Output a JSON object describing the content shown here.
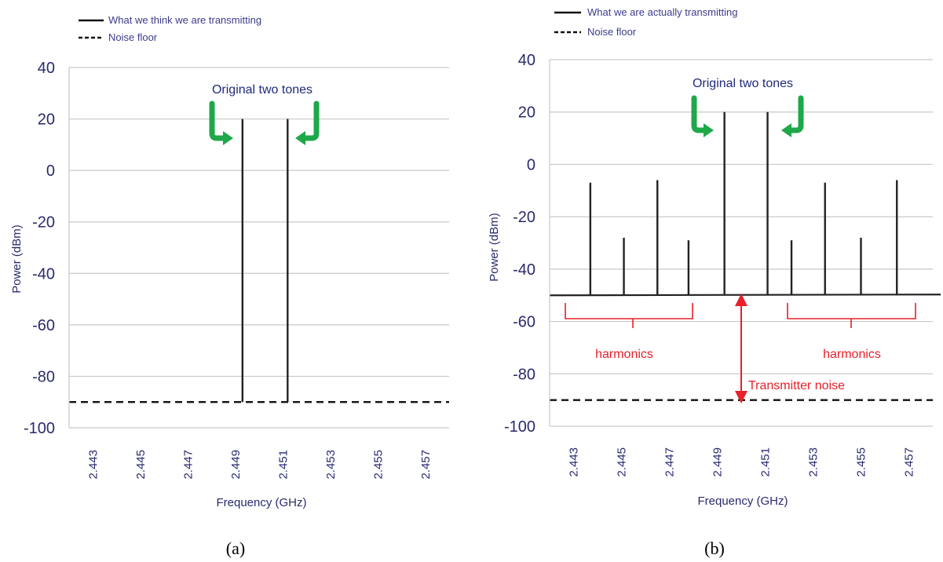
{
  "chart_data": [
    {
      "type": "line",
      "panel_label": "(a)",
      "xlabel": "Frequency (GHz)",
      "ylabel": "Power (dBm)",
      "xlim": [
        2.442,
        2.458
      ],
      "ylim": [
        -100,
        40
      ],
      "xticks": [
        2.443,
        2.445,
        2.447,
        2.449,
        2.451,
        2.453,
        2.455,
        2.457
      ],
      "xtick_labels": [
        "2.443",
        "2.445",
        "2.447",
        "2.449",
        "2.451",
        "2.453",
        "2.455",
        "2.457"
      ],
      "yticks": [
        -100,
        -80,
        -60,
        -40,
        -20,
        0,
        20,
        40
      ],
      "ytick_labels": [
        "-100",
        "-80",
        "-60",
        "-40",
        "-20",
        "0",
        "20",
        "40"
      ],
      "grid": "horizontal",
      "legend_position": "top-left",
      "series": [
        {
          "name": "What we think we are transmitting",
          "style": "solid",
          "color": "#222222",
          "stems": [
            {
              "x": 2.4493,
              "y": 20
            },
            {
              "x": 2.4512,
              "y": 20
            }
          ]
        },
        {
          "name": "Noise floor",
          "style": "dashed",
          "color": "#111111",
          "x": [
            2.442,
            2.458
          ],
          "y": [
            -90,
            -90
          ]
        }
      ],
      "annotations": [
        {
          "text": "Original two tones",
          "color": "#1f2a7a"
        }
      ]
    },
    {
      "type": "line",
      "panel_label": "(b)",
      "xlabel": "Frequency (GHz)",
      "ylabel": "Power (dBm)",
      "xlim": [
        2.442,
        2.458
      ],
      "ylim": [
        -100,
        40
      ],
      "xticks": [
        2.443,
        2.445,
        2.447,
        2.449,
        2.451,
        2.453,
        2.455,
        2.457
      ],
      "xtick_labels": [
        "2.443",
        "2.445",
        "2.447",
        "2.449",
        "2.451",
        "2.453",
        "2.455",
        "2.457"
      ],
      "yticks": [
        -100,
        -80,
        -60,
        -40,
        -20,
        0,
        20,
        40
      ],
      "ytick_labels": [
        "-100",
        "-80",
        "-60",
        "-40",
        "-20",
        "0",
        "20",
        "40"
      ],
      "grid": "horizontal",
      "legend_position": "top-left",
      "signal_floor": -50,
      "series": [
        {
          "name": "What we are actually transmitting",
          "style": "solid",
          "color": "#222222",
          "stems": [
            {
              "x": 2.4437,
              "y": -7
            },
            {
              "x": 2.4451,
              "y": -28
            },
            {
              "x": 2.4465,
              "y": -6
            },
            {
              "x": 2.4478,
              "y": -29
            },
            {
              "x": 2.4493,
              "y": 20
            },
            {
              "x": 2.4511,
              "y": 20
            },
            {
              "x": 2.4521,
              "y": -29
            },
            {
              "x": 2.4535,
              "y": -7
            },
            {
              "x": 2.455,
              "y": -28
            },
            {
              "x": 2.4565,
              "y": -6
            }
          ]
        },
        {
          "name": "Noise floor",
          "style": "dashed",
          "color": "#111111",
          "x": [
            2.442,
            2.458
          ],
          "y": [
            -90,
            -90
          ]
        }
      ],
      "annotations": [
        {
          "text": "Original two tones",
          "color": "#1f2a7a"
        },
        {
          "text": "harmonics",
          "color": "#e8202a"
        },
        {
          "text": "harmonics",
          "color": "#e8202a"
        },
        {
          "text": "Transmitter noise",
          "color": "#e8202a"
        }
      ]
    }
  ]
}
